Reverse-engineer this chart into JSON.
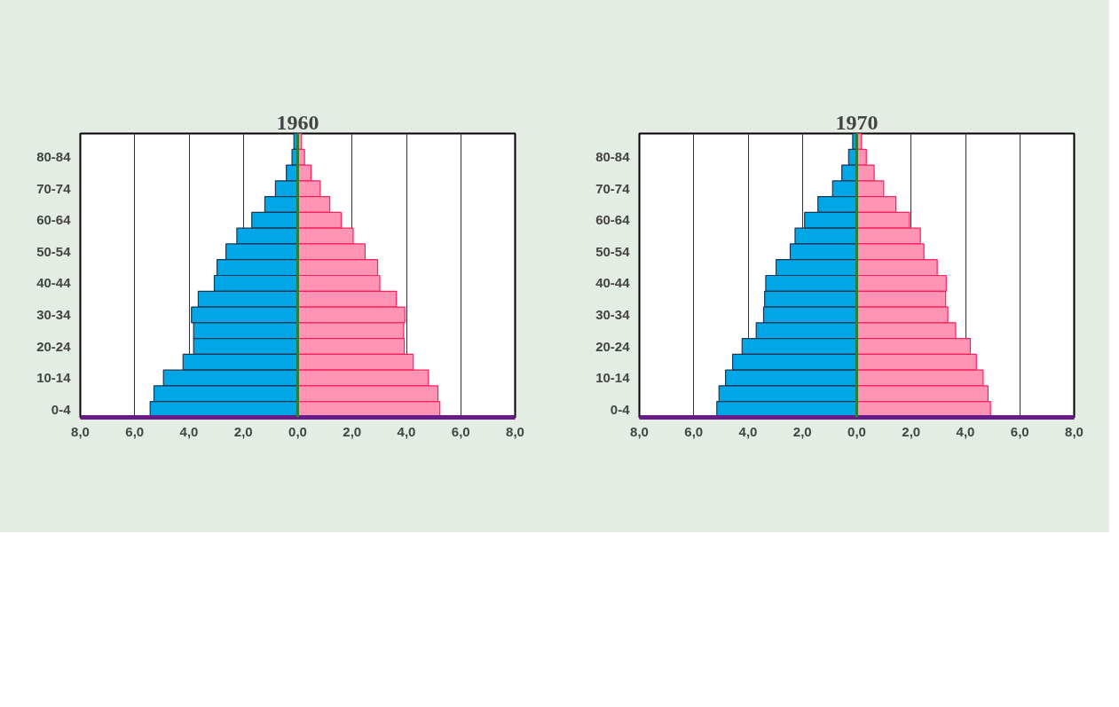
{
  "chart_data": [
    {
      "type": "bar",
      "orientation": "horizontal",
      "title": "1960",
      "categories": [
        null,
        "80-84",
        null,
        "70-74",
        null,
        "60-64",
        null,
        "50-54",
        null,
        "40-44",
        null,
        "30-34",
        null,
        "20-24",
        null,
        "10-14",
        null,
        "0-4"
      ],
      "series": [
        {
          "color": "#00a6e6",
          "values": [
            -0.14,
            -0.21,
            -0.42,
            -0.82,
            -1.21,
            -1.69,
            -2.24,
            -2.64,
            -2.97,
            -3.07,
            -3.66,
            -3.91,
            -3.83,
            -3.83,
            -4.22,
            -4.94,
            -5.29,
            -5.43
          ]
        },
        {
          "color": "#ff94b4",
          "values": [
            0.14,
            0.25,
            0.49,
            0.83,
            1.18,
            1.6,
            2.04,
            2.48,
            2.94,
            3.02,
            3.63,
            3.94,
            3.9,
            3.92,
            4.25,
            4.81,
            5.16,
            5.23
          ]
        }
      ],
      "xlim": [
        -8,
        8
      ],
      "xticks": [
        {
          "value": -8,
          "label": "8,0"
        },
        {
          "value": -6,
          "label": "6,0"
        },
        {
          "value": -4,
          "label": "4,0"
        },
        {
          "value": -2,
          "label": "2,0"
        },
        {
          "value": 0,
          "label": "0,0"
        },
        {
          "value": 2,
          "label": "2,0"
        },
        {
          "value": 4,
          "label": "4,0"
        },
        {
          "value": 6,
          "label": "6,0"
        },
        {
          "value": 8,
          "label": "8,0"
        }
      ],
      "ref_lines": [
        {
          "axis": "x",
          "value": 0,
          "color": "#2e7d32"
        }
      ],
      "grid": "x",
      "stacked": true
    },
    {
      "type": "bar",
      "orientation": "horizontal",
      "title": "1970",
      "categories": [
        null,
        "80-84",
        null,
        "70-74",
        null,
        "60-64",
        null,
        "50-54",
        null,
        "40-44",
        null,
        "30-34",
        null,
        "20-24",
        null,
        "10-14",
        null,
        "0-4"
      ],
      "series": [
        {
          "color": "#00a6e6",
          "values": [
            -0.15,
            -0.3,
            -0.55,
            -0.89,
            -1.43,
            -1.92,
            -2.27,
            -2.45,
            -2.97,
            -3.35,
            -3.39,
            -3.43,
            -3.7,
            -4.22,
            -4.57,
            -4.83,
            -5.07,
            -5.15
          ]
        },
        {
          "color": "#ff94b4",
          "values": [
            0.17,
            0.35,
            0.64,
            0.99,
            1.44,
            1.94,
            2.34,
            2.47,
            2.96,
            3.29,
            3.27,
            3.35,
            3.64,
            4.18,
            4.4,
            4.65,
            4.83,
            4.92
          ]
        }
      ],
      "xlim": [
        -8,
        8
      ],
      "xticks": [
        {
          "value": -8,
          "label": "8,0"
        },
        {
          "value": -6,
          "label": "6,0"
        },
        {
          "value": -4,
          "label": "4,0"
        },
        {
          "value": -2,
          "label": "2,0"
        },
        {
          "value": 0,
          "label": "0,0"
        },
        {
          "value": 2,
          "label": "2,0"
        },
        {
          "value": 4,
          "label": "4,0"
        },
        {
          "value": 6,
          "label": "6,0"
        },
        {
          "value": 8,
          "label": "8,0"
        }
      ],
      "ref_lines": [
        {
          "axis": "x",
          "value": 0,
          "color": "#2e7d32"
        }
      ],
      "grid": "x",
      "stacked": true
    }
  ]
}
